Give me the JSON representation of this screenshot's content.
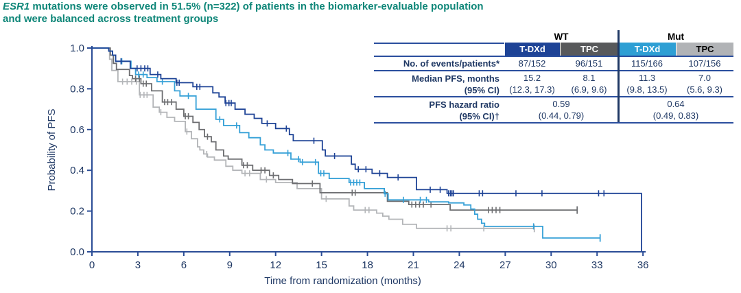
{
  "title": {
    "gene": "ESR1",
    "line1_rest": " mutations were observed in 51.5% (n=322) of patients in the biomarker-evaluable population",
    "line2": "and were balanced across treatment groups"
  },
  "colors": {
    "title_teal": "#0E8678",
    "axis_navy": "#2A4C96",
    "text_navy": "#1F3864",
    "table_rule": "#2A4E9E",
    "divider_navy": "#1F3864",
    "tdxd_wt": "#1E4396",
    "tpc_wt": "#6D6E71",
    "tdxd_mut": "#35A0D7",
    "tpc_mut": "#B3B5B8"
  },
  "table": {
    "group_labels": [
      "WT",
      "Mut"
    ],
    "arms": [
      {
        "label": "T-DXd",
        "bg": "#1E4396",
        "fg": "#ffffff"
      },
      {
        "label": "TPC",
        "bg": "#58595B",
        "fg": "#ffffff"
      },
      {
        "label": "T-DXd",
        "bg": "#2E9FD4",
        "fg": "#ffffff"
      },
      {
        "label": "TPC",
        "bg": "#B1B3B6",
        "fg": "#000000"
      }
    ],
    "row_events": {
      "label": "No. of events/patients*",
      "values": [
        "87/152",
        "96/151",
        "115/166",
        "107/156"
      ]
    },
    "row_median": {
      "label1": "Median PFS, months",
      "label2": "(95% CI)",
      "values": [
        [
          "15.2",
          "(12.3, 17.3)"
        ],
        [
          "8.1",
          "(6.9, 9.6)"
        ],
        [
          "11.3",
          "(9.8, 13.5)"
        ],
        [
          "7.0",
          "(5.6, 9.3)"
        ]
      ]
    },
    "row_hr": {
      "label1": "PFS hazard ratio",
      "label2": "(95% CI)†",
      "values": [
        [
          "0.59",
          "(0.44, 0.79)"
        ],
        [
          "0.64",
          "(0.49, 0.83)"
        ]
      ]
    }
  },
  "chart_data": {
    "type": "line",
    "subtype": "kaplan-meier-step",
    "xlabel": "Time from randomization (months)",
    "ylabel": "Probability of PFS",
    "xlim": [
      0,
      36
    ],
    "ylim": [
      0.0,
      1.0
    ],
    "xticks": [
      0,
      3,
      6,
      9,
      12,
      15,
      18,
      21,
      24,
      27,
      30,
      33,
      36
    ],
    "yticks": [
      0.0,
      0.2,
      0.4,
      0.6,
      0.8,
      1.0
    ],
    "grid": false,
    "legend": "none (table acts as legend)",
    "series": [
      {
        "id": "tpc-mut",
        "name": "TPC (Mut)",
        "color": "#B3B5B8",
        "median_pfs_months": 7.0,
        "steps": [
          [
            0,
            1.0
          ],
          [
            1.15,
            0.945
          ],
          [
            1.3,
            0.89
          ],
          [
            1.7,
            0.835
          ],
          [
            3.1,
            0.77
          ],
          [
            4.0,
            0.71
          ],
          [
            4.4,
            0.685
          ],
          [
            4.9,
            0.66
          ],
          [
            5.4,
            0.64
          ],
          [
            6.1,
            0.59
          ],
          [
            6.5,
            0.555
          ],
          [
            6.9,
            0.515
          ],
          [
            7.05,
            0.5
          ],
          [
            7.3,
            0.48
          ],
          [
            7.55,
            0.465
          ],
          [
            8.0,
            0.45
          ],
          [
            8.75,
            0.42
          ],
          [
            9.2,
            0.4
          ],
          [
            9.8,
            0.385
          ],
          [
            11.0,
            0.355
          ],
          [
            12.0,
            0.34
          ],
          [
            13.4,
            0.31
          ],
          [
            15.0,
            0.26
          ],
          [
            16.8,
            0.225
          ],
          [
            17.1,
            0.205
          ],
          [
            18.6,
            0.19
          ],
          [
            19.0,
            0.175
          ],
          [
            19.4,
            0.16
          ],
          [
            20.3,
            0.135
          ],
          [
            21.2,
            0.115
          ]
        ],
        "end_month": 28.9,
        "end_tick": true,
        "end_drop_to_zero": false,
        "censors": [
          2.0,
          2.3,
          2.6,
          2.9,
          3.15,
          3.4,
          3.6,
          4.5,
          6.2,
          7.5,
          10.0,
          10.3,
          11.4,
          15.3,
          17.85,
          18.1,
          23.2,
          23.45,
          25.6
        ]
      },
      {
        "id": "tpc-wt",
        "name": "TPC (WT)",
        "color": "#6D6E71",
        "median_pfs_months": 8.1,
        "steps": [
          [
            0,
            1.0
          ],
          [
            1.2,
            0.965
          ],
          [
            1.4,
            0.925
          ],
          [
            1.6,
            0.895
          ],
          [
            2.45,
            0.865
          ],
          [
            2.65,
            0.85
          ],
          [
            3.2,
            0.825
          ],
          [
            3.9,
            0.79
          ],
          [
            4.6,
            0.735
          ],
          [
            5.5,
            0.7
          ],
          [
            6.0,
            0.665
          ],
          [
            6.6,
            0.635
          ],
          [
            7.0,
            0.6
          ],
          [
            7.35,
            0.565
          ],
          [
            7.8,
            0.54
          ],
          [
            8.1,
            0.5
          ],
          [
            8.6,
            0.47
          ],
          [
            8.9,
            0.455
          ],
          [
            9.8,
            0.425
          ],
          [
            10.5,
            0.4
          ],
          [
            11.6,
            0.375
          ],
          [
            12.2,
            0.355
          ],
          [
            13.1,
            0.335
          ],
          [
            14.9,
            0.29
          ],
          [
            19.3,
            0.248
          ],
          [
            20.7,
            0.232
          ],
          [
            23.4,
            0.205
          ]
        ],
        "end_month": 31.7,
        "end_tick": true,
        "end_drop_to_zero": false,
        "censors": [
          2.85,
          3.1,
          3.35,
          3.55,
          4.75,
          4.95,
          5.2,
          6.1,
          6.3,
          7.55,
          9.9,
          10.15,
          11.05,
          11.3,
          11.85,
          14.4,
          17.0,
          17.2,
          20.9,
          21.15,
          21.4,
          21.65,
          22.15,
          25.9,
          26.15,
          26.4,
          26.65
        ]
      },
      {
        "id": "tdxd-mut",
        "name": "T-DXd (Mut)",
        "color": "#35A0D7",
        "median_pfs_months": 11.3,
        "steps": [
          [
            0,
            1.0
          ],
          [
            1.1,
            0.985
          ],
          [
            1.35,
            0.965
          ],
          [
            1.55,
            0.935
          ],
          [
            2.55,
            0.9
          ],
          [
            2.85,
            0.87
          ],
          [
            3.6,
            0.855
          ],
          [
            4.25,
            0.835
          ],
          [
            5.4,
            0.79
          ],
          [
            5.75,
            0.765
          ],
          [
            6.8,
            0.7
          ],
          [
            8.1,
            0.65
          ],
          [
            8.6,
            0.62
          ],
          [
            9.65,
            0.585
          ],
          [
            10.25,
            0.56
          ],
          [
            11.0,
            0.525
          ],
          [
            11.3,
            0.5
          ],
          [
            11.85,
            0.485
          ],
          [
            13.0,
            0.455
          ],
          [
            13.6,
            0.44
          ],
          [
            14.8,
            0.385
          ],
          [
            15.5,
            0.36
          ],
          [
            16.8,
            0.34
          ],
          [
            17.8,
            0.31
          ],
          [
            19.1,
            0.285
          ],
          [
            19.35,
            0.255
          ],
          [
            22.0,
            0.245
          ],
          [
            23.3,
            0.24
          ],
          [
            24.3,
            0.23
          ],
          [
            24.75,
            0.21
          ],
          [
            25.0,
            0.185
          ],
          [
            25.2,
            0.16
          ],
          [
            25.45,
            0.14
          ],
          [
            25.65,
            0.125
          ],
          [
            29.45,
            0.068
          ]
        ],
        "end_month": 33.2,
        "end_tick": true,
        "end_drop_to_zero": false,
        "censors": [
          1.95,
          3.05,
          3.35,
          4.6,
          6.3,
          8.35,
          9.45,
          12.8,
          13.5,
          13.75,
          14.6,
          14.95,
          15.15,
          16.9,
          17.1,
          17.3,
          17.5,
          19.15,
          20.35,
          21.45,
          21.85,
          28.85
        ]
      },
      {
        "id": "tdxd-wt",
        "name": "T-DXd (WT)",
        "color": "#1E4396",
        "median_pfs_months": 15.2,
        "steps": [
          [
            0,
            1.0
          ],
          [
            1.1,
            0.985
          ],
          [
            1.35,
            0.965
          ],
          [
            1.55,
            0.935
          ],
          [
            2.5,
            0.9
          ],
          [
            3.8,
            0.87
          ],
          [
            4.5,
            0.85
          ],
          [
            5.5,
            0.83
          ],
          [
            6.6,
            0.81
          ],
          [
            7.9,
            0.78
          ],
          [
            8.3,
            0.76
          ],
          [
            8.7,
            0.73
          ],
          [
            9.35,
            0.7
          ],
          [
            10.0,
            0.675
          ],
          [
            10.6,
            0.655
          ],
          [
            11.1,
            0.63
          ],
          [
            12.0,
            0.605
          ],
          [
            12.9,
            0.575
          ],
          [
            13.15,
            0.545
          ],
          [
            15.05,
            0.5
          ],
          [
            15.25,
            0.47
          ],
          [
            16.95,
            0.43
          ],
          [
            17.2,
            0.405
          ],
          [
            18.3,
            0.385
          ],
          [
            19.3,
            0.365
          ],
          [
            21.2,
            0.305
          ],
          [
            23.2,
            0.287
          ]
        ],
        "end_month": 35.9,
        "end_tick": false,
        "end_drop_to_zero": true,
        "censors": [
          1.9,
          2.95,
          3.2,
          3.45,
          3.65,
          4.3,
          5.55,
          5.7,
          6.85,
          7.05,
          8.75,
          8.95,
          9.1,
          11.45,
          12.7,
          14.5,
          15.85,
          17.4,
          17.9,
          18.8,
          20.0,
          22.1,
          22.75,
          23.3,
          23.42,
          23.52,
          23.62,
          25.3,
          25.52,
          27.7,
          29.4,
          33.1,
          33.45
        ]
      }
    ]
  }
}
